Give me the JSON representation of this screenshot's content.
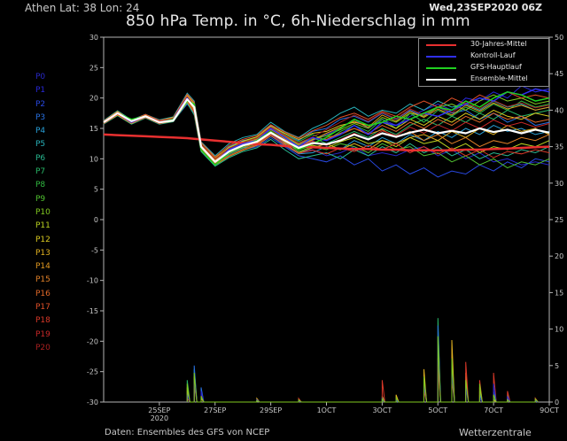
{
  "header": {
    "location": "Athen   Lat: 38 Lon: 24",
    "date": "Wed,23SEP2020 06Z",
    "title": "850 hPa Temp. in °C, 6h-Niederschlag in mm"
  },
  "footer": {
    "source": "Daten: Ensembles des GFS von NCEP",
    "brand": "Wetterzentrale"
  },
  "members": [
    {
      "label": "P0",
      "color": "#2828c8"
    },
    {
      "label": "P1",
      "color": "#2828d8"
    },
    {
      "label": "P2",
      "color": "#2848e0"
    },
    {
      "label": "P3",
      "color": "#2870e0"
    },
    {
      "label": "P4",
      "color": "#28a0d8"
    },
    {
      "label": "P5",
      "color": "#28b0b8"
    },
    {
      "label": "P6",
      "color": "#28b890"
    },
    {
      "label": "P7",
      "color": "#28b868"
    },
    {
      "label": "P8",
      "color": "#30b840"
    },
    {
      "label": "P9",
      "color": "#50c030"
    },
    {
      "label": "P10",
      "color": "#80c820"
    },
    {
      "label": "P11",
      "color": "#b8d020"
    },
    {
      "label": "P12",
      "color": "#d8c820"
    },
    {
      "label": "P13",
      "color": "#e0b020"
    },
    {
      "label": "P14",
      "color": "#e09820"
    },
    {
      "label": "P15",
      "color": "#e08028"
    },
    {
      "label": "P16",
      "color": "#e06828"
    },
    {
      "label": "P17",
      "color": "#e05028"
    },
    {
      "label": "P18",
      "color": "#d83828"
    },
    {
      "label": "P19",
      "color": "#c82828"
    },
    {
      "label": "P20",
      "color": "#a82020"
    }
  ],
  "legend": [
    {
      "label": "30-Jahres-Mittel",
      "color": "#e83030"
    },
    {
      "label": "Kontroll-Lauf",
      "color": "#3030f0"
    },
    {
      "label": "GFS-Hauptlauf",
      "color": "#20d020"
    },
    {
      "label": "Ensemble-Mittel",
      "color": "#ffffff"
    }
  ],
  "chart_data": {
    "type": "line",
    "title": "850 hPa Temp. in °C, 6h-Niederschlag in mm",
    "xlabel": "",
    "ylabel": "",
    "x_ticks": [
      "25SEP",
      "27SEP",
      "29SEP",
      "1OCT",
      "3OCT",
      "5OCT",
      "7OCT",
      "9OCT"
    ],
    "x_tick_days": [
      2,
      4,
      6,
      8,
      10,
      12,
      14,
      16
    ],
    "x_sublabel": "2020",
    "xlim_days": [
      0,
      16
    ],
    "y_left": {
      "ticks": [
        30,
        25,
        20,
        15,
        10,
        5,
        0,
        -5,
        -10,
        -15,
        -20,
        -25,
        -30
      ],
      "lim": [
        -30,
        30
      ]
    },
    "y_right": {
      "ticks": [
        50,
        45,
        40,
        35,
        30,
        25,
        20,
        15,
        10,
        5,
        0
      ],
      "lim": [
        0,
        50
      ]
    },
    "grid": false,
    "legend_position": "top-right",
    "x_days": [
      0,
      0.5,
      1,
      1.5,
      2,
      2.5,
      3,
      3.25,
      3.5,
      4,
      4.5,
      5,
      5.5,
      6,
      6.5,
      7,
      7.5,
      8,
      8.5,
      9,
      9.5,
      10,
      10.5,
      11,
      11.5,
      12,
      12.5,
      13,
      13.5,
      14,
      14.5,
      15,
      15.5,
      16
    ],
    "series": [
      {
        "name": "30-Jahres-Mittel",
        "color": "#e83030",
        "width": 2.5,
        "values": [
          14.0,
          13.9,
          13.8,
          13.7,
          13.6,
          13.5,
          13.4,
          13.3,
          13.2,
          13.0,
          12.8,
          12.6,
          12.4,
          12.3,
          12.1,
          12.0,
          11.9,
          11.8,
          11.7,
          11.6,
          11.6,
          11.5,
          11.5,
          11.4,
          11.4,
          11.4,
          11.4,
          11.5,
          11.5,
          11.6,
          11.7,
          11.8,
          11.9,
          12.0
        ]
      },
      {
        "name": "Kontroll-Lauf",
        "color": "#3030f0",
        "width": 1.5,
        "values": [
          16.0,
          17.5,
          16.0,
          17.0,
          16.0,
          16.5,
          20.0,
          18.5,
          12.0,
          9.5,
          11.5,
          12.5,
          13.0,
          15.0,
          13.5,
          12.0,
          13.5,
          13.0,
          14.0,
          15.5,
          14.0,
          16.0,
          15.5,
          16.5,
          17.5,
          17.0,
          18.0,
          19.0,
          20.0,
          19.5,
          21.0,
          20.5,
          21.5,
          21.0
        ]
      },
      {
        "name": "GFS-Hauptlauf",
        "color": "#20d020",
        "width": 1.5,
        "values": [
          16.0,
          17.5,
          16.5,
          17.0,
          16.0,
          16.5,
          19.5,
          19.0,
          11.5,
          9.0,
          11.0,
          12.0,
          13.0,
          14.5,
          13.0,
          11.5,
          12.5,
          13.5,
          15.0,
          16.5,
          15.5,
          16.0,
          17.0,
          16.5,
          17.5,
          18.5,
          18.0,
          19.5,
          18.5,
          20.0,
          21.0,
          20.5,
          19.5,
          20.0
        ]
      },
      {
        "name": "Ensemble-Mittel",
        "color": "#ffffff",
        "width": 2.2,
        "values": [
          16.0,
          17.5,
          16.2,
          17.0,
          16.0,
          16.3,
          19.8,
          18.5,
          12.0,
          9.5,
          11.2,
          12.2,
          12.8,
          14.3,
          13.0,
          11.8,
          12.6,
          12.4,
          13.0,
          14.0,
          13.2,
          14.2,
          13.6,
          14.3,
          14.8,
          14.2,
          14.6,
          14.2,
          15.0,
          14.4,
          14.8,
          14.2,
          14.8,
          14.3
        ]
      }
    ],
    "member_values": [
      [
        16.0,
        17.5,
        16.0,
        17.0,
        16.0,
        16.5,
        19.5,
        18.0,
        12.0,
        9.5,
        11.0,
        12.0,
        12.5,
        14.0,
        12.5,
        11.0,
        11.5,
        10.5,
        11.0,
        12.0,
        10.5,
        11.0,
        10.5,
        11.5,
        12.0,
        10.5,
        11.5,
        10.0,
        11.0,
        9.5,
        10.0,
        9.0,
        9.5,
        9.0
      ],
      [
        16.2,
        17.8,
        16.3,
        17.2,
        16.3,
        16.8,
        20.5,
        19.0,
        12.5,
        10.0,
        11.5,
        12.5,
        13.0,
        14.5,
        13.0,
        12.0,
        13.0,
        14.0,
        15.0,
        16.5,
        15.0,
        16.5,
        15.5,
        17.0,
        18.0,
        19.0,
        18.0,
        20.0,
        19.5,
        21.0,
        20.0,
        22.0,
        21.0,
        21.5
      ],
      [
        15.8,
        17.2,
        15.8,
        16.8,
        15.8,
        16.2,
        19.0,
        17.5,
        11.5,
        9.0,
        10.5,
        11.5,
        12.0,
        13.5,
        12.0,
        10.5,
        10.0,
        9.5,
        10.5,
        9.0,
        10.0,
        8.0,
        9.0,
        7.5,
        8.5,
        7.0,
        8.0,
        7.5,
        9.0,
        8.0,
        9.5,
        8.5,
        10.0,
        9.5
      ],
      [
        16.1,
        17.6,
        16.1,
        17.1,
        16.1,
        16.6,
        20.2,
        18.8,
        12.2,
        9.8,
        12.0,
        13.0,
        13.5,
        15.5,
        14.0,
        13.0,
        14.5,
        15.0,
        16.5,
        17.0,
        16.0,
        17.5,
        16.5,
        18.0,
        17.0,
        18.5,
        17.5,
        18.0,
        16.5,
        17.5,
        16.0,
        17.0,
        15.5,
        16.0
      ],
      [
        15.9,
        17.4,
        15.9,
        16.9,
        15.9,
        16.4,
        19.8,
        18.2,
        11.8,
        9.2,
        10.8,
        11.8,
        12.2,
        13.8,
        12.2,
        10.8,
        11.0,
        12.0,
        11.5,
        13.0,
        12.0,
        13.5,
        12.5,
        14.0,
        13.0,
        14.5,
        13.5,
        15.0,
        14.0,
        15.5,
        14.5,
        15.0,
        14.0,
        14.5
      ],
      [
        16.3,
        17.9,
        16.4,
        17.3,
        16.4,
        16.9,
        20.8,
        19.5,
        12.8,
        10.5,
        12.5,
        13.5,
        14.0,
        16.0,
        14.5,
        13.5,
        15.0,
        16.0,
        17.5,
        18.5,
        17.0,
        18.0,
        17.5,
        19.0,
        18.0,
        19.5,
        18.5,
        19.0,
        18.0,
        19.5,
        18.5,
        19.0,
        18.0,
        18.5
      ],
      [
        15.7,
        17.1,
        15.7,
        16.7,
        15.7,
        16.1,
        19.2,
        17.2,
        11.2,
        8.8,
        10.2,
        11.2,
        11.8,
        13.2,
        11.5,
        10.0,
        10.5,
        11.0,
        10.0,
        11.5,
        10.5,
        12.0,
        11.0,
        12.5,
        11.0,
        12.0,
        10.5,
        11.5,
        10.0,
        11.0,
        10.5,
        11.5,
        11.0,
        12.0
      ],
      [
        16.0,
        17.5,
        16.1,
        17.0,
        16.0,
        16.5,
        20.0,
        18.5,
        12.0,
        9.6,
        11.3,
        12.4,
        13.2,
        14.8,
        13.5,
        12.5,
        13.5,
        12.5,
        13.5,
        14.5,
        13.5,
        15.0,
        14.0,
        15.5,
        16.5,
        15.5,
        17.0,
        16.0,
        17.5,
        16.5,
        18.0,
        17.0,
        17.5,
        18.0
      ],
      [
        16.2,
        17.7,
        16.2,
        17.1,
        16.2,
        16.7,
        20.3,
        19.2,
        12.6,
        10.2,
        11.8,
        12.8,
        13.5,
        15.2,
        14.0,
        12.8,
        14.0,
        13.0,
        14.5,
        15.5,
        14.5,
        16.5,
        15.0,
        17.5,
        16.0,
        18.0,
        17.0,
        18.5,
        17.5,
        19.0,
        18.0,
        19.5,
        18.5,
        19.0
      ],
      [
        15.8,
        17.3,
        15.9,
        16.9,
        15.9,
        16.3,
        19.6,
        17.8,
        11.6,
        9.2,
        10.6,
        11.6,
        12.4,
        14.2,
        12.8,
        11.2,
        12.0,
        11.5,
        12.5,
        12.0,
        11.0,
        12.5,
        11.5,
        12.0,
        10.5,
        11.0,
        9.5,
        10.5,
        9.0,
        10.0,
        8.5,
        9.5,
        9.0,
        10.0
      ],
      [
        16.1,
        17.6,
        16.2,
        17.2,
        16.1,
        16.6,
        20.1,
        18.6,
        12.3,
        9.9,
        11.6,
        12.6,
        13.3,
        15.0,
        13.6,
        12.2,
        13.2,
        13.8,
        14.8,
        15.8,
        15.0,
        16.8,
        16.0,
        17.5,
        17.0,
        18.5,
        19.0,
        18.0,
        19.5,
        20.5,
        19.5,
        20.0,
        19.0,
        19.5
      ],
      [
        15.9,
        17.4,
        16.0,
        16.9,
        15.9,
        16.4,
        19.7,
        18.1,
        11.9,
        9.4,
        11.0,
        12.0,
        12.6,
        14.4,
        12.6,
        11.5,
        12.2,
        11.8,
        12.8,
        13.5,
        12.5,
        13.0,
        12.0,
        13.5,
        12.5,
        13.0,
        11.5,
        12.5,
        11.0,
        12.0,
        11.5,
        12.5,
        12.0,
        13.0
      ],
      [
        16.2,
        17.8,
        16.3,
        17.2,
        16.3,
        16.8,
        20.4,
        19.0,
        12.4,
        10.1,
        11.9,
        12.9,
        13.6,
        15.4,
        14.2,
        13.2,
        14.2,
        14.5,
        15.5,
        16.0,
        15.5,
        16.0,
        15.0,
        16.5,
        15.5,
        17.0,
        16.0,
        17.5,
        16.5,
        18.0,
        17.0,
        16.5,
        17.5,
        17.0
      ],
      [
        15.8,
        17.2,
        15.8,
        16.8,
        15.8,
        16.2,
        19.4,
        17.6,
        11.4,
        9.0,
        10.4,
        11.4,
        12.2,
        13.8,
        12.4,
        11.0,
        11.8,
        12.5,
        11.5,
        12.5,
        11.5,
        13.0,
        12.5,
        13.5,
        14.0,
        13.0,
        14.5,
        13.5,
        15.0,
        14.0,
        15.5,
        14.5,
        15.0,
        14.0
      ],
      [
        16.0,
        17.5,
        16.0,
        17.0,
        16.0,
        16.5,
        20.0,
        18.4,
        12.1,
        9.7,
        11.4,
        12.3,
        13.1,
        14.9,
        13.3,
        12.1,
        13.1,
        14.2,
        15.2,
        16.2,
        15.2,
        17.2,
        16.2,
        17.8,
        16.8,
        18.2,
        17.2,
        18.8,
        17.8,
        19.2,
        18.2,
        18.8,
        18.0,
        18.5
      ],
      [
        16.1,
        17.6,
        16.1,
        17.1,
        16.1,
        16.6,
        20.2,
        18.7,
        12.3,
        9.9,
        11.5,
        12.5,
        13.3,
        15.1,
        13.8,
        12.4,
        13.4,
        13.2,
        14.2,
        15.0,
        14.0,
        14.8,
        13.5,
        14.5,
        13.0,
        14.0,
        12.5,
        13.5,
        12.0,
        13.0,
        12.5,
        13.5,
        13.0,
        14.0
      ],
      [
        15.9,
        17.3,
        15.9,
        16.8,
        15.9,
        16.3,
        19.5,
        17.9,
        11.7,
        9.3,
        10.9,
        11.9,
        12.5,
        14.1,
        12.7,
        11.6,
        12.4,
        13.5,
        14.0,
        15.0,
        14.2,
        15.5,
        14.5,
        16.0,
        15.0,
        16.5,
        15.5,
        17.0,
        16.0,
        17.5,
        16.5,
        17.0,
        16.0,
        16.5
      ],
      [
        16.2,
        17.7,
        16.3,
        17.3,
        16.3,
        16.7,
        20.6,
        19.3,
        12.7,
        10.3,
        12.2,
        13.2,
        13.8,
        15.6,
        14.4,
        13.4,
        14.6,
        15.5,
        16.8,
        17.5,
        16.5,
        17.8,
        17.0,
        18.5,
        19.5,
        18.5,
        20.0,
        19.0,
        20.5,
        19.5,
        21.0,
        20.0,
        20.5,
        20.0
      ],
      [
        15.8,
        17.3,
        15.9,
        16.9,
        15.8,
        16.3,
        19.6,
        17.7,
        11.5,
        9.1,
        10.5,
        11.5,
        12.3,
        13.9,
        12.3,
        10.9,
        11.4,
        10.8,
        11.8,
        11.2,
        12.2,
        11.5,
        12.5,
        11.0,
        12.0,
        10.8,
        11.8,
        10.5,
        11.5,
        10.2,
        11.2,
        10.8,
        11.5,
        11.0
      ],
      [
        16.0,
        17.5,
        16.1,
        17.0,
        16.0,
        16.5,
        19.9,
        18.3,
        12.0,
        9.6,
        11.2,
        12.2,
        12.9,
        14.6,
        13.1,
        11.9,
        12.9,
        12.2,
        13.2,
        14.2,
        13.2,
        14.6,
        13.8,
        15.2,
        14.2,
        15.6,
        14.6,
        16.0,
        15.0,
        16.4,
        15.4,
        16.0,
        15.2,
        15.8
      ],
      [
        16.1,
        17.6,
        16.2,
        17.1,
        16.2,
        16.6,
        20.2,
        18.8,
        12.4,
        10.0,
        11.7,
        12.7,
        13.4,
        15.2,
        13.9,
        12.6,
        13.6,
        14.8,
        16.0,
        17.2,
        16.2,
        17.6,
        16.6,
        18.2,
        17.2,
        18.6,
        17.6,
        19.2,
        18.2,
        19.6,
        18.6,
        19.2,
        18.4,
        18.8
      ]
    ],
    "precip_x_days": [
      3.0,
      3.25,
      3.5,
      5.5,
      7.0,
      10.0,
      10.5,
      11.5,
      12.0,
      12.5,
      13.0,
      13.5,
      14.0,
      14.5,
      15.5
    ],
    "precip": [
      {
        "color": "#28b868",
        "values": [
          3.0,
          4.5,
          1.0,
          0.3,
          0.2,
          0.5,
          0.2,
          3.0,
          11.5,
          7.0,
          2.5,
          1.5,
          0.5,
          1.0,
          0.2
        ]
      },
      {
        "color": "#2870e0",
        "values": [
          1.5,
          5.0,
          2.0,
          0.2,
          0.3,
          0.3,
          0.5,
          2.0,
          10.5,
          5.0,
          3.5,
          1.0,
          1.5,
          0.5,
          0.3
        ]
      },
      {
        "color": "#e0b020",
        "values": [
          2.0,
          3.5,
          0.5,
          0.5,
          0.2,
          0.8,
          1.0,
          4.5,
          6.0,
          8.5,
          4.0,
          2.0,
          0.3,
          0.8,
          0.5
        ]
      },
      {
        "color": "#d83828",
        "values": [
          0.5,
          2.5,
          1.0,
          0.2,
          0.5,
          3.0,
          0.5,
          1.5,
          5.0,
          3.0,
          5.5,
          3.0,
          4.0,
          1.5,
          0.5
        ]
      },
      {
        "color": "#2828c8",
        "values": [
          1.0,
          3.0,
          1.5,
          0.3,
          0.2,
          0.5,
          0.3,
          2.5,
          8.0,
          4.0,
          2.0,
          0.5,
          2.5,
          0.8,
          0.2
        ]
      },
      {
        "color": "#80c820",
        "values": [
          2.5,
          4.0,
          0.8,
          0.2,
          0.3,
          0.4,
          0.6,
          3.5,
          9.0,
          6.0,
          3.0,
          2.5,
          1.0,
          0.3,
          0.4
        ]
      }
    ]
  }
}
